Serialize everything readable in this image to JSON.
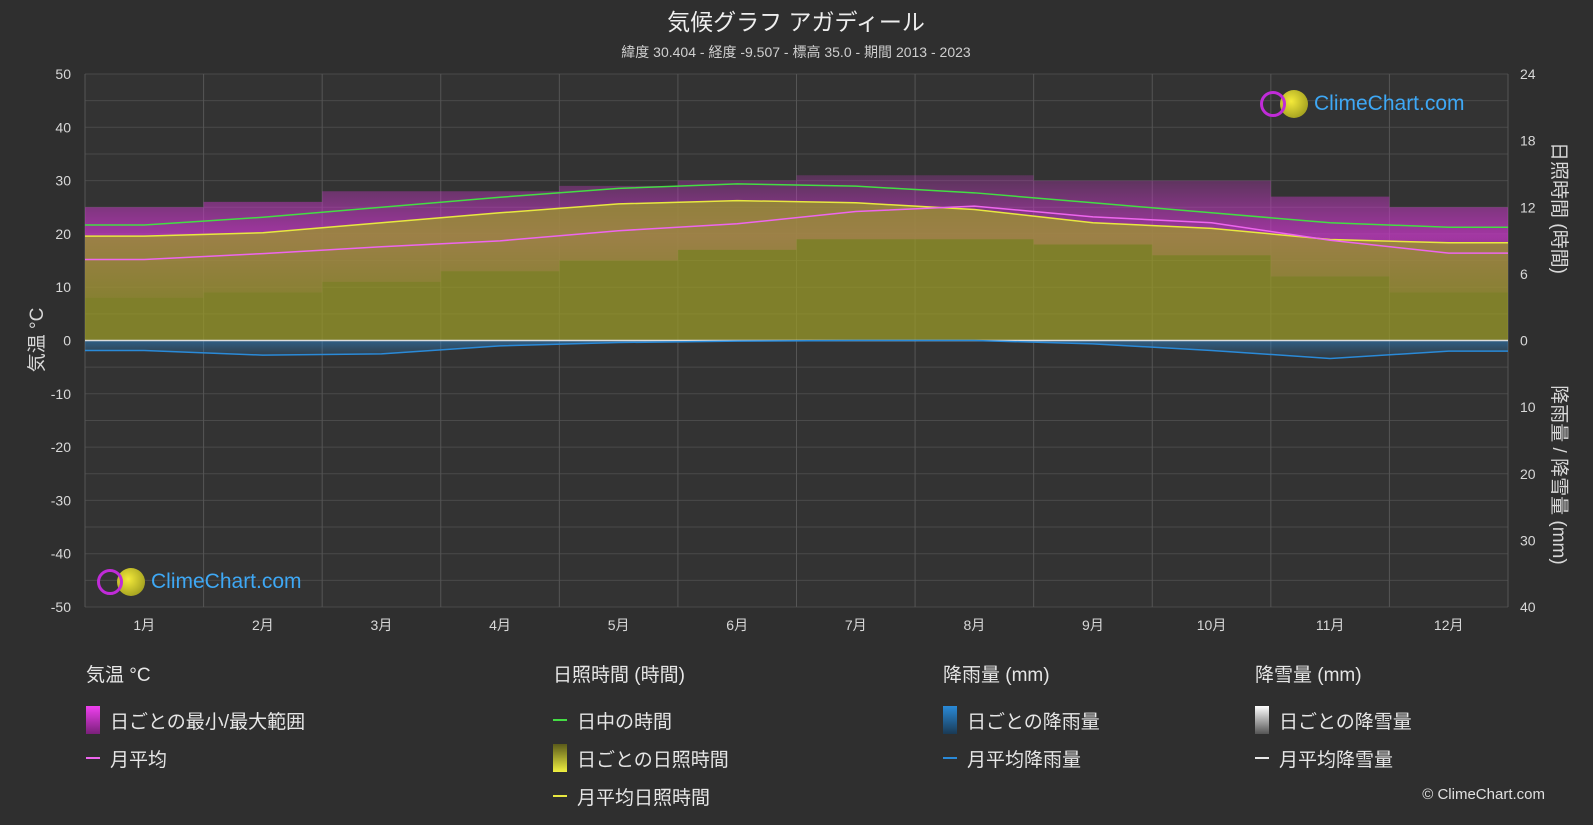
{
  "header": {
    "title": "気候グラフ アガディール",
    "subtitle": "緯度 30.404 - 経度 -9.507 - 標高 35.0 - 期間 2013 - 2023"
  },
  "axes": {
    "left_label": "気温 °C",
    "right_top_label": "日照時間 (時間)",
    "right_bottom_label": "降雨量 / 降雪量 (mm)",
    "left_ticks": [
      "50",
      "40",
      "30",
      "20",
      "10",
      "0",
      "-10",
      "-20",
      "-30",
      "-40",
      "-50"
    ],
    "right_top_ticks": [
      "24",
      "18",
      "12",
      "6",
      "0"
    ],
    "right_bottom_ticks": [
      "10",
      "20",
      "30",
      "40"
    ]
  },
  "logo_text": "ClimeChart.com",
  "copyright": "© ClimeChart.com",
  "colors": {
    "background": "#2f2f2f",
    "daylight": "#44dd44",
    "sunshine_avg": "#e8e840",
    "sunshine_daily": "#9a9a28",
    "temp_avg": "#ee66ee",
    "temp_range": "#c040c0",
    "rain": "#2a8ad8"
  },
  "legend": {
    "temperature": {
      "title": "気温 °C",
      "range": "日ごとの最小/最大範囲",
      "avg": "月平均"
    },
    "sunshine": {
      "title": "日照時間 (時間)",
      "daylight": "日中の時間",
      "daily": "日ごとの日照時間",
      "avg": "月平均日照時間"
    },
    "rain": {
      "title": "降雨量 (mm)",
      "daily": "日ごとの降雨量",
      "avg": "月平均降雨量"
    },
    "snow": {
      "title": "降雪量 (mm)",
      "daily": "日ごとの降雪量",
      "avg": "月平均降雪量"
    }
  },
  "chart_data": {
    "type": "line",
    "categories": [
      "1月",
      "2月",
      "3月",
      "4月",
      "5月",
      "6月",
      "7月",
      "8月",
      "9月",
      "10月",
      "11月",
      "12月"
    ],
    "temperature_ylim": [
      -50,
      50
    ],
    "sunshine_ylim": [
      0,
      24
    ],
    "precip_ylim": [
      0,
      40
    ],
    "series": [
      {
        "name": "日中の時間",
        "axis": "sunshine_hours",
        "values": [
          10.4,
          11.1,
          12.0,
          12.9,
          13.7,
          14.1,
          13.9,
          13.3,
          12.4,
          11.5,
          10.6,
          10.2
        ]
      },
      {
        "name": "月平均日照時間",
        "axis": "sunshine_hours",
        "values": [
          9.4,
          9.7,
          10.6,
          11.5,
          12.3,
          12.6,
          12.4,
          11.8,
          10.6,
          10.1,
          9.1,
          8.8
        ]
      },
      {
        "name": "月平均",
        "axis": "temperature_c",
        "values": [
          15.2,
          16.3,
          17.6,
          18.7,
          20.6,
          21.9,
          24.2,
          25.2,
          23.2,
          22.1,
          18.8,
          16.4
        ]
      },
      {
        "name": "月平均降雨量",
        "axis": "precip_mm",
        "values": [
          1.5,
          2.2,
          2.0,
          0.8,
          0.3,
          0.1,
          0.0,
          0.0,
          0.5,
          1.5,
          2.7,
          1.6
        ]
      },
      {
        "name": "月平均降雪量",
        "axis": "precip_mm",
        "values": [
          0,
          0,
          0,
          0,
          0,
          0,
          0,
          0,
          0,
          0,
          0,
          0
        ]
      }
    ],
    "temperature_range_monthly": {
      "min": [
        8,
        9,
        11,
        13,
        15,
        17,
        19,
        19,
        18,
        16,
        12,
        9
      ],
      "max": [
        25,
        26,
        28,
        28,
        29,
        30,
        31,
        31,
        30,
        30,
        27,
        25
      ]
    },
    "grid": true
  }
}
